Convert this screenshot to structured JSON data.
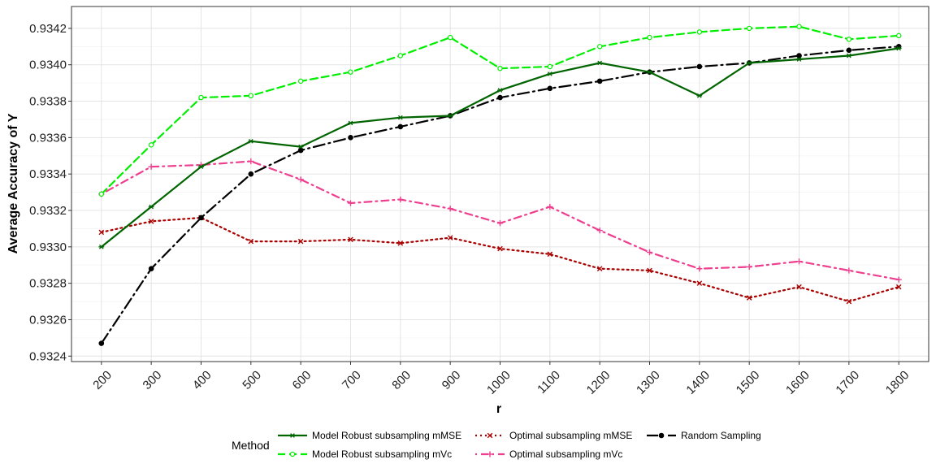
{
  "chart_data": {
    "type": "line",
    "title": "",
    "xlabel": "r",
    "ylabel": "Average Accuracy of Y",
    "x": [
      200,
      300,
      400,
      500,
      600,
      700,
      800,
      900,
      1000,
      1100,
      1200,
      1300,
      1400,
      1500,
      1600,
      1700,
      1800
    ],
    "xtick_labels": [
      "200",
      "300",
      "400",
      "500",
      "600",
      "700",
      "800",
      "900",
      "1000",
      "1100",
      "1200",
      "1300",
      "1400",
      "1500",
      "1600",
      "1700",
      "1800"
    ],
    "ylim": [
      0.93237,
      0.93432
    ],
    "yticks": [
      0.9324,
      0.9326,
      0.9328,
      0.933,
      0.9332,
      0.9334,
      0.9336,
      0.9338,
      0.934,
      0.9342
    ],
    "ytick_labels": [
      "0.9324",
      "0.9326",
      "0.9328",
      "0.9330",
      "0.9332",
      "0.9334",
      "0.9336",
      "0.9338",
      "0.9340",
      "0.9342"
    ],
    "grid": true,
    "legend": {
      "title": "Method",
      "position": "bottom"
    },
    "series": [
      {
        "name": "Model Robust subsampling mMSE",
        "color": "#006400",
        "dash": "solid",
        "marker": "asterisk",
        "values": [
          0.933,
          0.93322,
          0.93344,
          0.93358,
          0.93355,
          0.93368,
          0.93371,
          0.93372,
          0.93386,
          0.93395,
          0.93401,
          0.93396,
          0.93383,
          0.93401,
          0.93403,
          0.93405,
          0.93409
        ]
      },
      {
        "name": "Model Robust subsampling mVc",
        "color": "#00ee00",
        "dash": "dashed",
        "marker": "open-circle",
        "values": [
          0.93329,
          0.93356,
          0.93382,
          0.93383,
          0.93391,
          0.93396,
          0.93405,
          0.93415,
          0.93398,
          0.93399,
          0.9341,
          0.93415,
          0.93418,
          0.9342,
          0.93421,
          0.93414,
          0.93416
        ]
      },
      {
        "name": "Optimal subsampling mMSE",
        "color": "#aa0000",
        "dash": "dotted",
        "marker": "cross",
        "values": [
          0.93308,
          0.93314,
          0.93316,
          0.93303,
          0.93303,
          0.93304,
          0.93302,
          0.93305,
          0.93299,
          0.93296,
          0.93288,
          0.93287,
          0.9328,
          0.93272,
          0.93278,
          0.9327,
          0.93278
        ]
      },
      {
        "name": "Optimal subsampling mVc",
        "color": "#ee3f8f",
        "dash": "dotdash",
        "marker": "plus",
        "values": [
          0.93329,
          0.93344,
          0.93345,
          0.93347,
          0.93337,
          0.93324,
          0.93326,
          0.93321,
          0.93313,
          0.93322,
          0.93309,
          0.93297,
          0.93288,
          0.93289,
          0.93292,
          0.93287,
          0.93282
        ]
      },
      {
        "name": "Random Sampling",
        "color": "#000000",
        "dash": "longdash",
        "marker": "filled-circle",
        "values": [
          0.93247,
          0.93288,
          0.93316,
          0.9334,
          0.93353,
          0.9336,
          0.93366,
          0.93372,
          0.93382,
          0.93387,
          0.93391,
          0.93396,
          0.93399,
          0.93401,
          0.93405,
          0.93408,
          0.9341
        ]
      }
    ]
  }
}
